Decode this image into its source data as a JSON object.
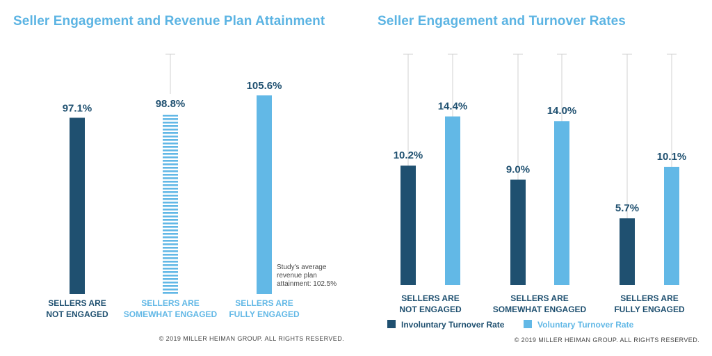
{
  "chart_data": [
    {
      "type": "bar",
      "title": "Seller Engagement and Revenue Plan Attainment",
      "categories": [
        [
          "SELLERS ARE",
          "NOT ENGAGED"
        ],
        [
          "SELLERS ARE",
          "SOMEWHAT ENGAGED"
        ],
        [
          "SELLERS ARE",
          "FULLY ENGAGED"
        ]
      ],
      "values": [
        97.1,
        98.8,
        105.6
      ],
      "value_labels": [
        "97.1%",
        "98.8%",
        "105.6%"
      ],
      "annotation": [
        "Study's average",
        "revenue plan",
        "attainment: 102.5%"
      ],
      "average": 102.5,
      "copyright": "© 2019 MILLER HEIMAN GROUP. ALL RIGHTS RESERVED."
    },
    {
      "type": "bar",
      "title": "Seller Engagement and Turnover Rates",
      "categories": [
        [
          "SELLERS ARE",
          "NOT ENGAGED"
        ],
        [
          "SELLERS ARE",
          "SOMEWHAT ENGAGED"
        ],
        [
          "SELLERS ARE",
          "FULLY ENGAGED"
        ]
      ],
      "series": [
        {
          "name": "Involuntary Turnover Rate",
          "values": [
            10.2,
            9.0,
            5.7
          ],
          "labels": [
            "10.2%",
            "9.0%",
            "5.7%"
          ],
          "color": "#1f5070"
        },
        {
          "name": "Voluntary Turnover Rate",
          "values": [
            14.4,
            14.0,
            10.1
          ],
          "labels": [
            "14.4%",
            "14.0%",
            "10.1%"
          ],
          "color": "#62b8e6"
        }
      ],
      "copyright": "© 2019 MILLER HEIMAN GROUP. ALL RIGHTS RESERVED."
    }
  ],
  "colors": {
    "dark": "#1f5070",
    "light": "#62b8e6",
    "title": "#5cb4e3",
    "grid": "#d0d0d0"
  }
}
